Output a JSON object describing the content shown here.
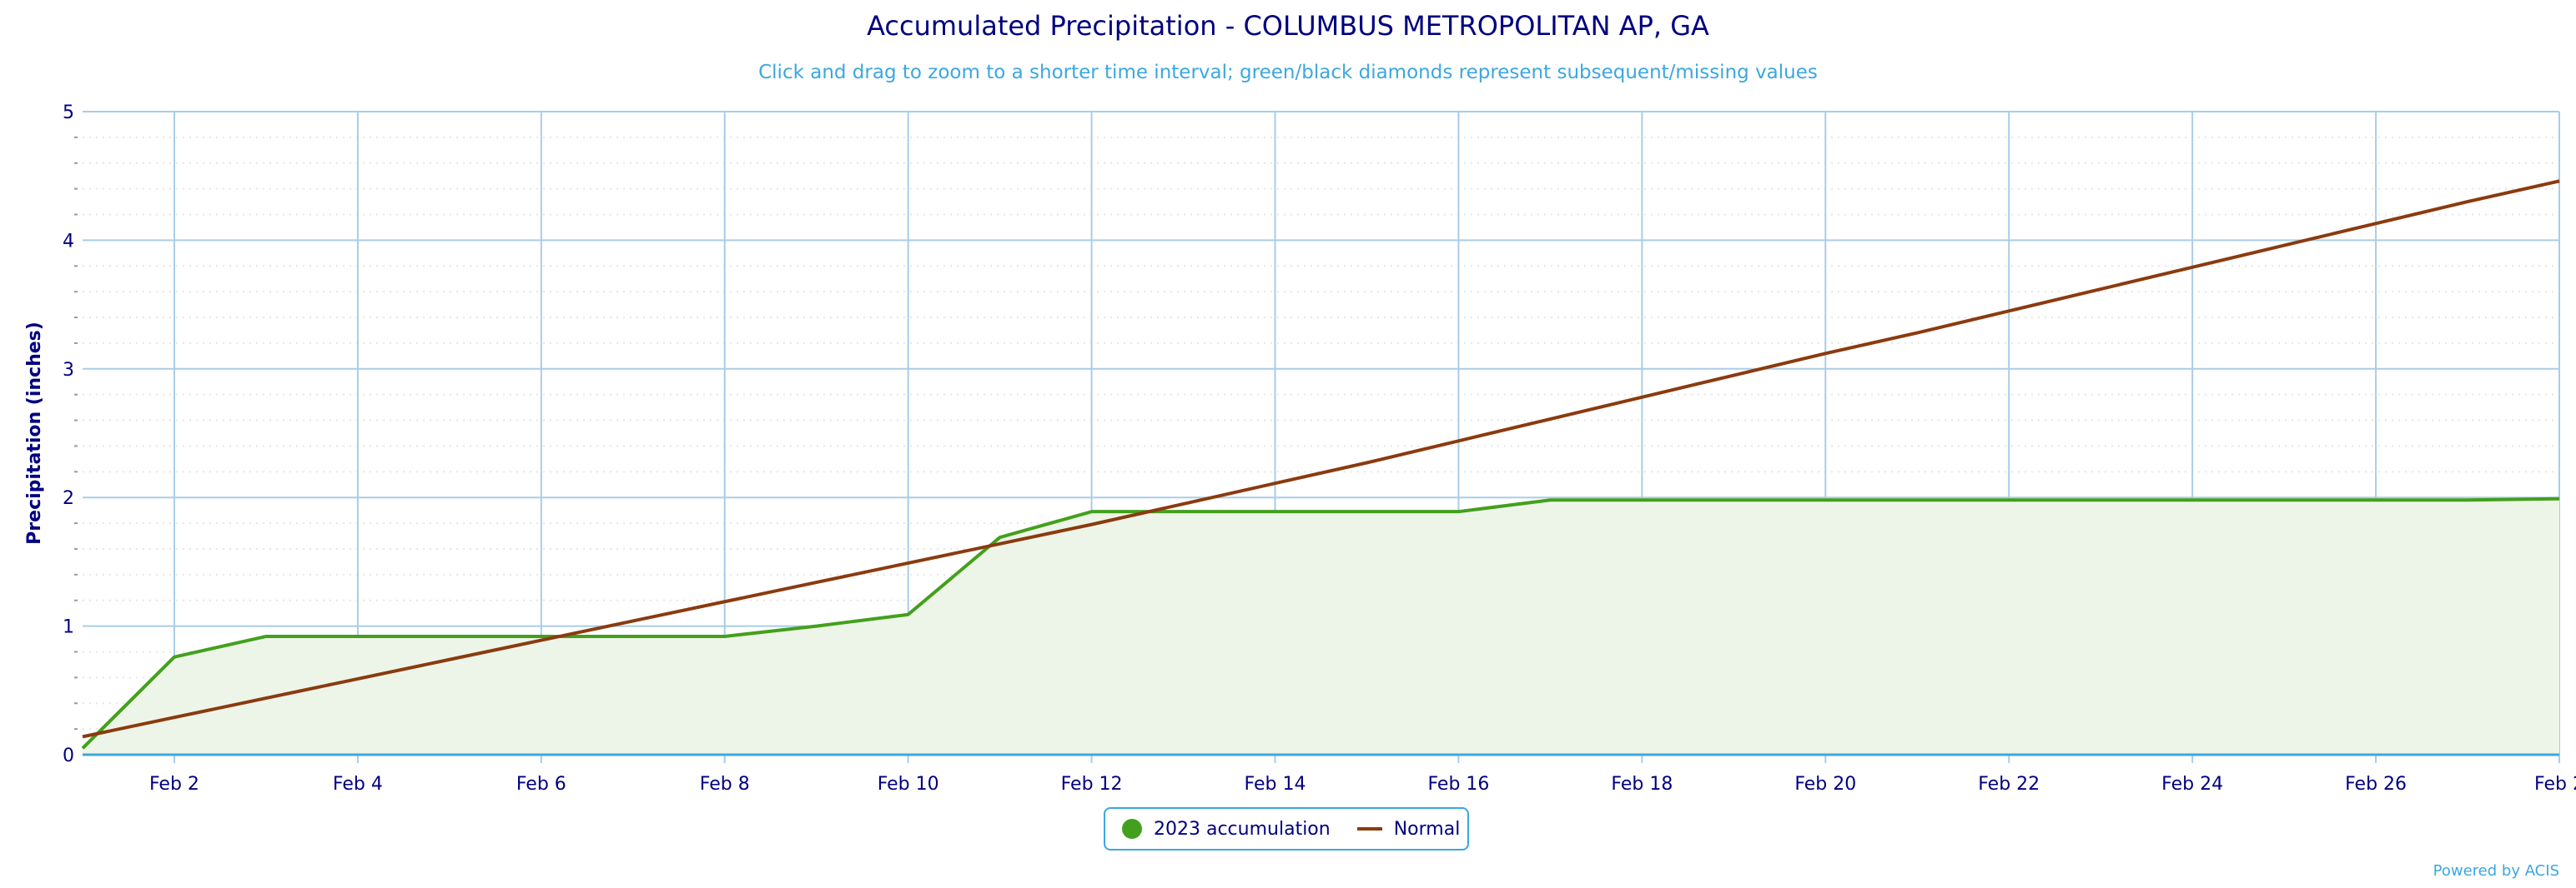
{
  "chart_data": {
    "type": "area",
    "title": "Accumulated Precipitation - COLUMBUS METROPOLITAN AP, GA",
    "subtitle": "Click and drag to zoom to a shorter time interval; green/black diamonds represent subsequent/missing values",
    "ylabel": "Precipitation (inches)",
    "xlabel": "",
    "ylim": [
      0,
      5
    ],
    "yticks": [
      "0",
      "1",
      "2",
      "3",
      "4",
      "5"
    ],
    "x_day_range": [
      1,
      28
    ],
    "xtick_days": [
      2,
      4,
      6,
      8,
      10,
      12,
      14,
      16,
      18,
      20,
      22,
      24,
      26,
      28
    ],
    "xtick_labels": [
      "Feb 2",
      "Feb 4",
      "Feb 6",
      "Feb 8",
      "Feb 10",
      "Feb 12",
      "Feb 14",
      "Feb 16",
      "Feb 18",
      "Feb 20",
      "Feb 22",
      "Feb 24",
      "Feb 26",
      "Feb 2"
    ],
    "x": [
      1,
      2,
      3,
      4,
      5,
      6,
      7,
      8,
      9,
      10,
      11,
      12,
      13,
      14,
      15,
      16,
      17,
      18,
      19,
      20,
      21,
      22,
      23,
      24,
      25,
      26,
      27,
      28
    ],
    "series": [
      {
        "name": "2023 accumulation",
        "color": "#43a01c",
        "fill": "#edf5e8",
        "values": [
          0.05,
          0.76,
          0.92,
          0.92,
          0.92,
          0.92,
          0.92,
          0.92,
          1.0,
          1.09,
          1.69,
          1.89,
          1.89,
          1.89,
          1.89,
          1.89,
          1.98,
          1.98,
          1.98,
          1.98,
          1.98,
          1.98,
          1.98,
          1.98,
          1.98,
          1.98,
          1.98,
          1.99
        ]
      },
      {
        "name": "Normal",
        "color": "#8b3a0f",
        "values": [
          0.14,
          0.29,
          0.44,
          0.59,
          0.74,
          0.89,
          1.04,
          1.19,
          1.34,
          1.49,
          1.64,
          1.79,
          1.95,
          2.11,
          2.27,
          2.44,
          2.61,
          2.78,
          2.95,
          3.12,
          3.28,
          3.45,
          3.62,
          3.79,
          3.96,
          4.13,
          4.3,
          4.46
        ]
      }
    ],
    "grid": true,
    "legend": "bottom-center"
  },
  "credit": "Powered by ACIS"
}
